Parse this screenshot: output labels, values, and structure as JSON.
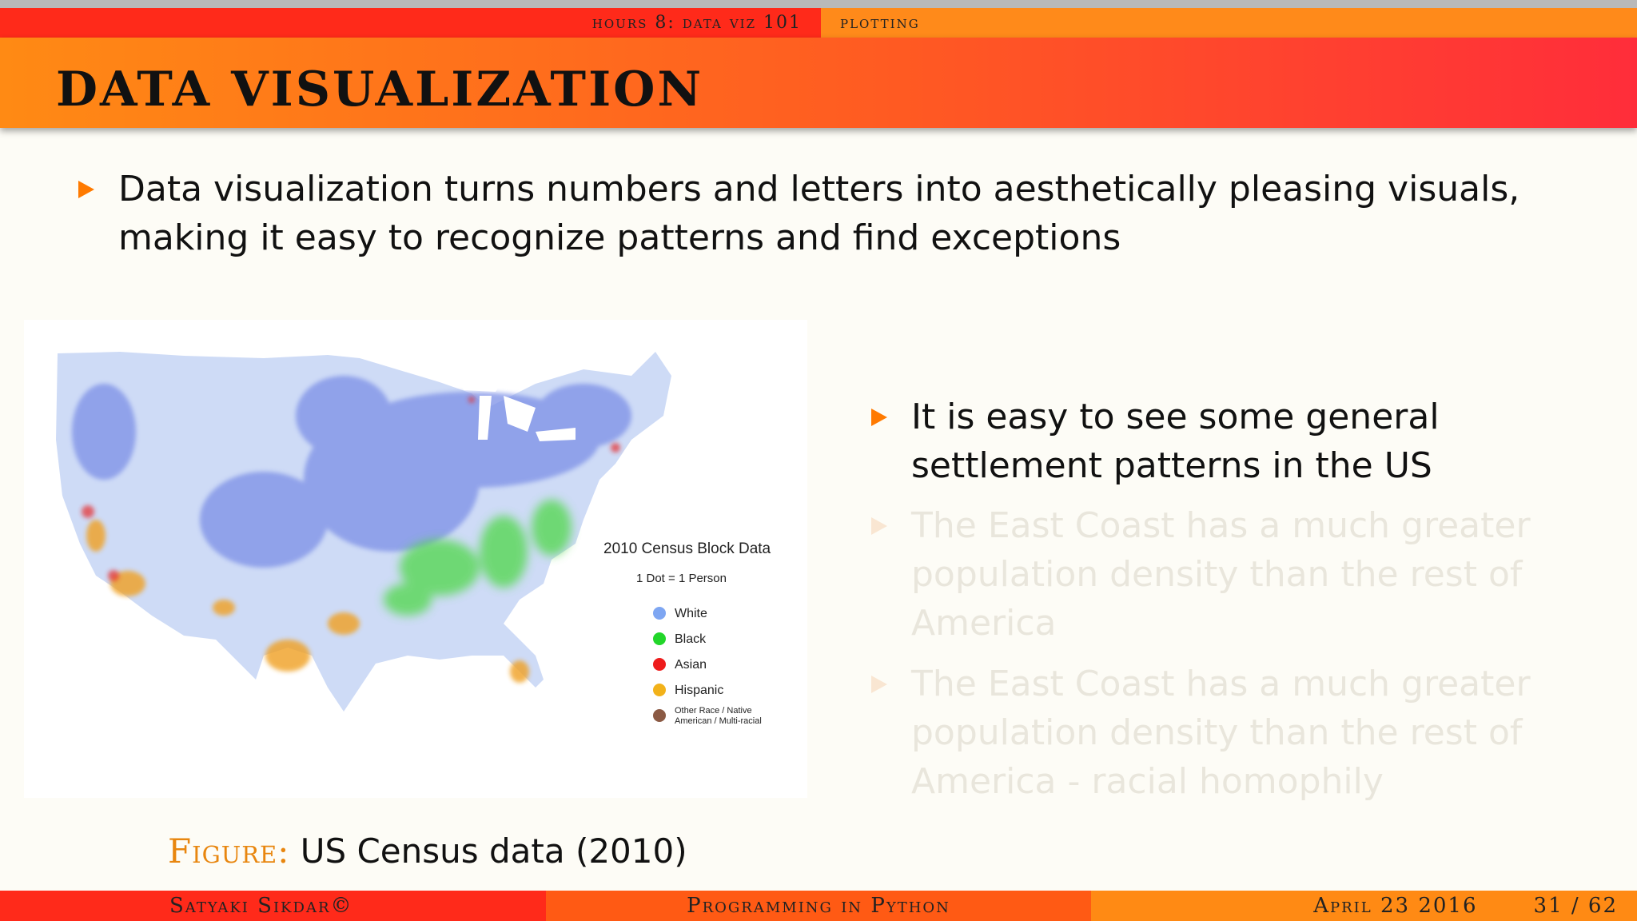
{
  "header": {
    "section": "hours 8:  data viz 101",
    "subsection": "plotting"
  },
  "title": "DATA  VISUALIZATION",
  "bullets": {
    "intro": "Data visualization turns numbers and letters into aesthetically pleasing visuals, making it easy to recognize patterns and find exceptions",
    "patterns": "It is easy to see some general settlement patterns in the US",
    "east_coast": "The East Coast has a much greater population density than the rest of America",
    "homophily": "The East Coast has a much greater population density than the rest of America - racial homophily"
  },
  "figure": {
    "map_title": "2010 Census Block Data",
    "map_subtitle": "1 Dot = 1 Person",
    "legend": [
      {
        "label": "White",
        "color": "#7ea6f2"
      },
      {
        "label": "Black",
        "color": "#22d62a"
      },
      {
        "label": "Asian",
        "color": "#ee1c1c"
      },
      {
        "label": "Hispanic",
        "color": "#f2b21a"
      },
      {
        "label": "Other Race / Native",
        "label2": "American / Multi-racial",
        "color": "#8b5a44"
      }
    ],
    "caption_label": "Figure:",
    "caption_text": "US Census data (2010)"
  },
  "footer": {
    "author": "Satyaki Sikdar©",
    "course": "Programming in Python",
    "date": "April 23 2016",
    "page": "31 / 62"
  }
}
